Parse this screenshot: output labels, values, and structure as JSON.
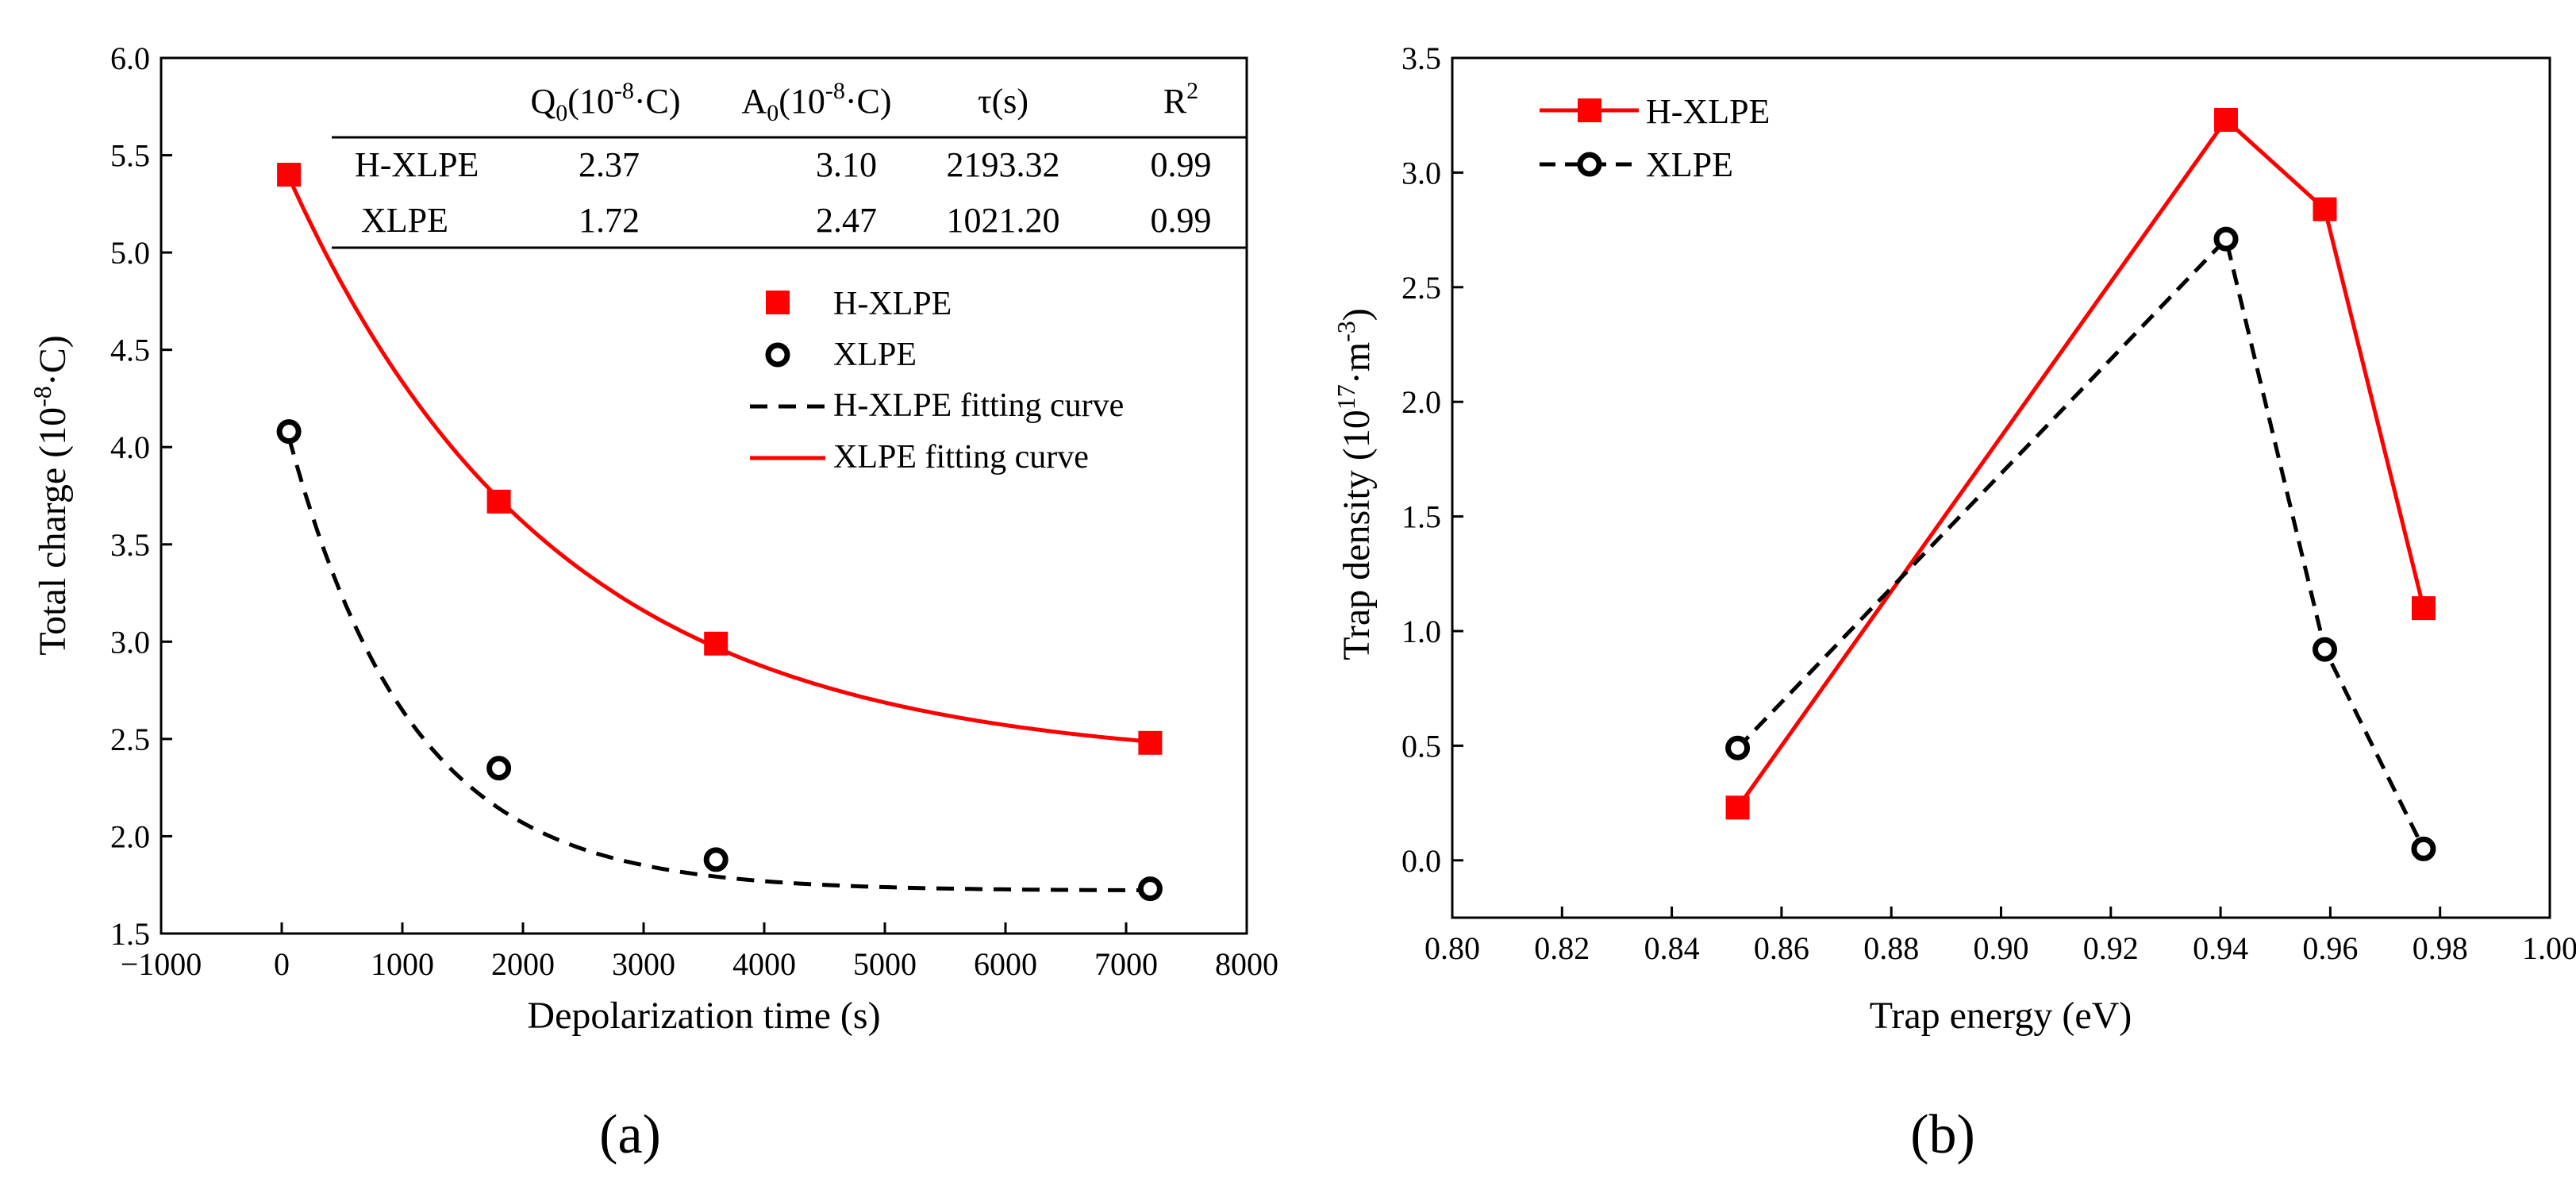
{
  "colors": {
    "hxlpe": "#ff0000",
    "xlpe": "#000000",
    "axis": "#000000"
  },
  "chart_data": [
    {
      "type": "scatter",
      "panel_label": "(a)",
      "title": "",
      "xlabel": "Depolarization time (s)",
      "ylabel": "Total charge (10",
      "ylabel_sup": "-8",
      "ylabel_tail": "·C)",
      "xlim": [
        -1000,
        8000
      ],
      "ylim": [
        1.5,
        6.0
      ],
      "xticks": [
        -1000,
        0,
        1000,
        2000,
        3000,
        4000,
        5000,
        6000,
        7000,
        8000
      ],
      "xtick_labels": [
        "−1000",
        "0",
        "1000",
        "2000",
        "3000",
        "4000",
        "5000",
        "6000",
        "7000",
        "8000"
      ],
      "yticks": [
        1.5,
        2.0,
        2.5,
        3.0,
        3.5,
        4.0,
        4.5,
        5.0,
        5.5,
        6.0
      ],
      "ytick_labels": [
        "1.5",
        "2.0",
        "2.5",
        "3.0",
        "3.5",
        "4.0",
        "4.5",
        "5.0",
        "5.5",
        "6.0"
      ],
      "series": [
        {
          "name": "H-XLPE",
          "marker": "filled-square",
          "x": [
            60,
            1800,
            3600,
            7200
          ],
          "y": [
            5.4,
            3.72,
            2.99,
            2.48
          ]
        },
        {
          "name": "XLPE",
          "marker": "open-circle",
          "x": [
            60,
            1800,
            3600,
            7200
          ],
          "y": [
            4.08,
            2.35,
            1.88,
            1.73
          ]
        }
      ],
      "fits": [
        {
          "name": "H-XLPE fitting curve",
          "style": "dashed",
          "color_key": "xlpe",
          "Q0": 1.72,
          "A0": 2.47,
          "tau": 1021.2,
          "x_start": 60,
          "x_end": 7200
        },
        {
          "name": "XLPE fitting curve",
          "style": "solid",
          "color_key": "hxlpe",
          "Q0": 2.37,
          "A0": 3.1,
          "tau": 2193.32,
          "x_start": 60,
          "x_end": 7200
        }
      ],
      "legend": [
        "H-XLPE",
        "XLPE",
        "H-XLPE fitting curve",
        "XLPE fitting curve"
      ],
      "legend_position": "center-right",
      "table": {
        "headers": [
          {
            "base": "Q",
            "sub": "0",
            "mid": "(10",
            "sup": "-8",
            "tail": "·C)"
          },
          {
            "base": "A",
            "sub": "0",
            "mid": "(10",
            "sup": "-8",
            "tail": "·C)"
          },
          {
            "base": "τ(s)",
            "sub": "",
            "mid": "",
            "sup": "",
            "tail": ""
          },
          {
            "base": "R",
            "sub": "",
            "mid": "",
            "sup": "2",
            "tail": ""
          }
        ],
        "rows": [
          {
            "label": "H-XLPE",
            "values": [
              "2.37",
              "3.10",
              "2193.32",
              "0.99"
            ]
          },
          {
            "label": "XLPE",
            "values": [
              "1.72",
              "2.47",
              "1021.20",
              "0.99"
            ]
          }
        ]
      }
    },
    {
      "type": "line",
      "panel_label": "(b)",
      "title": "",
      "xlabel": "Trap energy (eV)",
      "ylabel": "Trap density (10",
      "ylabel_sup": "17",
      "ylabel_tail": "·m",
      "ylabel_sup2": "-3",
      "ylabel_end": ")",
      "xlim": [
        0.8,
        1.0
      ],
      "ylim": [
        -0.25,
        3.5
      ],
      "xticks": [
        0.8,
        0.82,
        0.84,
        0.86,
        0.88,
        0.9,
        0.92,
        0.94,
        0.96,
        0.98,
        1.0
      ],
      "xtick_labels": [
        "0.80",
        "0.82",
        "0.84",
        "0.86",
        "0.88",
        "0.90",
        "0.92",
        "0.94",
        "0.96",
        "0.98",
        "1.00"
      ],
      "yticks": [
        0.0,
        0.5,
        1.0,
        1.5,
        2.0,
        2.5,
        3.0,
        3.5
      ],
      "ytick_labels": [
        "0.0",
        "0.5",
        "1.0",
        "1.5",
        "2.0",
        "2.5",
        "3.0",
        "3.5"
      ],
      "series": [
        {
          "name": "H-XLPE",
          "marker": "filled-square",
          "style": "solid",
          "x": [
            0.852,
            0.941,
            0.959,
            0.977
          ],
          "y": [
            0.23,
            3.23,
            2.84,
            1.1
          ]
        },
        {
          "name": "XLPE",
          "marker": "open-circle",
          "style": "dashed",
          "x": [
            0.852,
            0.941,
            0.959,
            0.977
          ],
          "y": [
            0.49,
            2.71,
            0.92,
            0.05
          ]
        }
      ],
      "legend": [
        "H-XLPE",
        "XLPE"
      ],
      "legend_position": "top-left"
    }
  ]
}
